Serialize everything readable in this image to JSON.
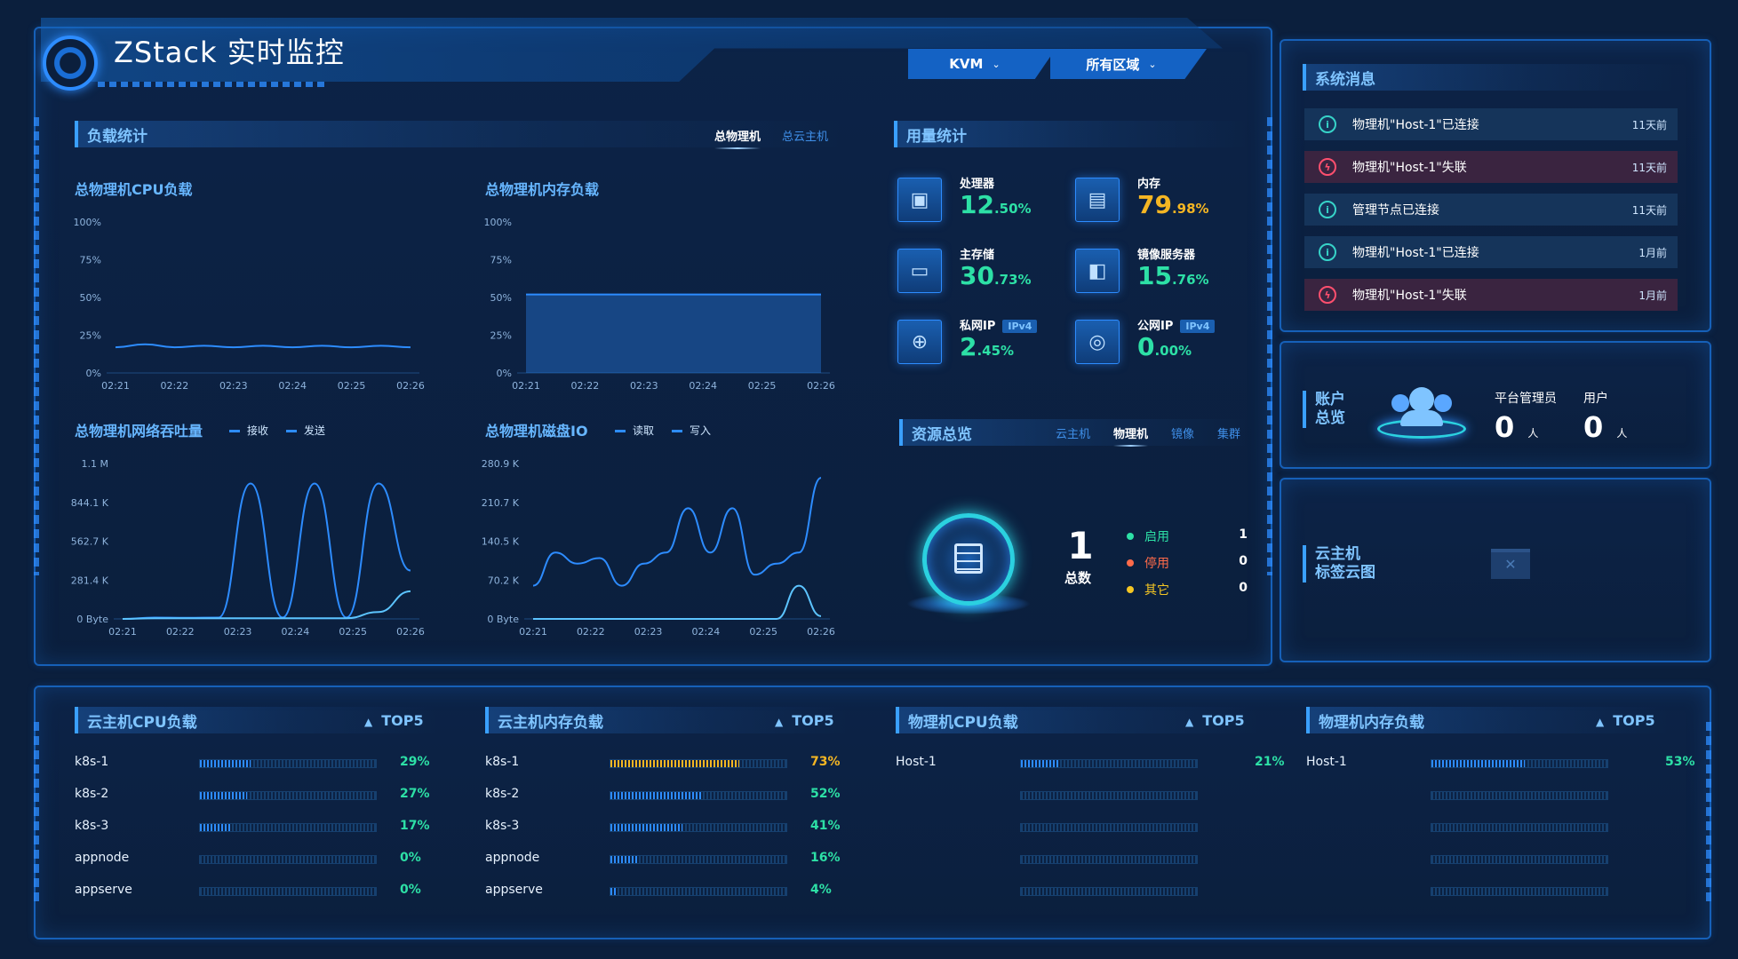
{
  "header": {
    "title": "ZStack 实时监控",
    "hypervisor_select": "KVM",
    "zone_select": "所有区域",
    "colors": {
      "accent": "#2d8cff",
      "background": "#0b1f3d"
    }
  },
  "load_stats": {
    "title": "负载统计",
    "tabs": [
      "总物理机",
      "总云主机"
    ],
    "active_tab": "总物理机"
  },
  "charts": {
    "cpu": {
      "title": "总物理机CPU负载",
      "ticks_y": [
        "100%",
        "75%",
        "50%",
        "25%",
        "0%"
      ],
      "ticks_x": [
        "02:21",
        "02:22",
        "02:23",
        "02:24",
        "02:25",
        "02:26"
      ]
    },
    "mem": {
      "title": "总物理机内存负载",
      "ticks_y": [
        "100%",
        "75%",
        "50%",
        "25%",
        "0%"
      ],
      "ticks_x": [
        "02:21",
        "02:22",
        "02:23",
        "02:24",
        "02:25",
        "02:26"
      ]
    },
    "net": {
      "title": "总物理机网络吞吐量",
      "legend": [
        "接收",
        "发送"
      ],
      "ticks_y": [
        "1.1 M",
        "844.1 K",
        "562.7 K",
        "281.4 K",
        "0 Byte"
      ],
      "ticks_x": [
        "02:21",
        "02:22",
        "02:23",
        "02:24",
        "02:25",
        "02:26"
      ]
    },
    "disk": {
      "title": "总物理机磁盘IO",
      "legend": [
        "读取",
        "写入"
      ],
      "ticks_y": [
        "280.9 K",
        "210.7 K",
        "140.5 K",
        "70.2 K",
        "0 Byte"
      ],
      "ticks_x": [
        "02:21",
        "02:22",
        "02:23",
        "02:24",
        "02:25",
        "02:26"
      ]
    }
  },
  "chart_data": [
    {
      "type": "line",
      "ylabel": "",
      "ylim": [
        0,
        100
      ],
      "x": [
        "02:21",
        "02:21:30",
        "02:22",
        "02:22:30",
        "02:23",
        "02:23:30",
        "02:24",
        "02:24:30",
        "02:25",
        "02:25:30",
        "02:26"
      ],
      "series": [
        {
          "values": [
            17,
            19,
            17,
            18,
            17,
            18,
            17,
            18,
            17,
            18,
            17
          ]
        }
      ]
    },
    {
      "type": "area",
      "ylabel": "",
      "ylim": [
        0,
        100
      ],
      "x": [
        "02:21",
        "02:22",
        "02:23",
        "02:24",
        "02:25",
        "02:26"
      ],
      "series": [
        {
          "values": [
            52,
            52,
            52,
            52,
            52,
            52
          ]
        }
      ]
    },
    {
      "type": "line",
      "ylim": [
        0,
        1125000
      ],
      "x": [
        "02:21",
        "02:22",
        "02:23",
        "02:24",
        "02:24:10",
        "02:24:20",
        "02:24:30",
        "02:25",
        "02:25:50",
        "02:26"
      ],
      "series": [
        {
          "name": "接收",
          "values": [
            0,
            10000,
            8000,
            10000,
            980000,
            10000,
            980000,
            10000,
            980000,
            350000
          ]
        },
        {
          "name": "发送",
          "values": [
            0,
            5000,
            5000,
            5000,
            5000,
            5000,
            5000,
            5000,
            50000,
            200000
          ]
        }
      ]
    },
    {
      "type": "line",
      "ylim": [
        0,
        280900
      ],
      "x": [
        "02:21",
        "02:21:20",
        "02:21:40",
        "02:22",
        "02:22:30",
        "02:23",
        "02:23:20",
        "02:23:40",
        "02:24",
        "02:24:20",
        "02:24:40",
        "02:25",
        "02:25:30",
        "02:26"
      ],
      "series": [
        {
          "name": "读取",
          "values": [
            60000,
            120000,
            100000,
            110000,
            60000,
            100000,
            120000,
            200000,
            120000,
            200000,
            80000,
            100000,
            120000,
            255000
          ]
        },
        {
          "name": "写入",
          "values": [
            0,
            0,
            0,
            0,
            0,
            0,
            0,
            0,
            0,
            0,
            0,
            0,
            60000,
            5000
          ]
        }
      ]
    }
  ],
  "usage": {
    "title": "用量统计",
    "items": [
      {
        "name": "处理器",
        "int": "12",
        "dec": ".50%",
        "color": "#2de0a6",
        "icon": "cpu-icon",
        "glyph": "▣"
      },
      {
        "name": "内存",
        "int": "79",
        "dec": ".98%",
        "color": "#f5b623",
        "icon": "memory-icon",
        "glyph": "▤"
      },
      {
        "name": "主存储",
        "int": "30",
        "dec": ".73%",
        "color": "#2de0a6",
        "icon": "storage-icon",
        "glyph": "▭"
      },
      {
        "name": "镜像服务器",
        "int": "15",
        "dec": ".76%",
        "color": "#2de0a6",
        "icon": "image-server-icon",
        "glyph": "◧"
      },
      {
        "name": "私网IP",
        "tag": "IPv4",
        "int": "2",
        "dec": ".45%",
        "color": "#2de0a6",
        "icon": "lock-icon",
        "glyph": "⊕"
      },
      {
        "name": "公网IP",
        "tag": "IPv4",
        "int": "0",
        "dec": ".00%",
        "color": "#2de0a6",
        "icon": "globe-icon",
        "glyph": "◎"
      }
    ]
  },
  "resource": {
    "title": "资源总览",
    "tabs": [
      "云主机",
      "物理机",
      "镜像",
      "集群"
    ],
    "active_tab": "物理机",
    "total": "1",
    "total_label": "总数",
    "states": [
      {
        "label": "启用",
        "count": "1",
        "color": "#2de0a6"
      },
      {
        "label": "停用",
        "count": "0",
        "color": "#ff6b4a"
      },
      {
        "label": "其它",
        "count": "0",
        "color": "#f5c623"
      }
    ]
  },
  "messages": {
    "title": "系统消息",
    "items": [
      {
        "type": "info",
        "text": "物理机\"Host-1\"已连接",
        "time": "11天前"
      },
      {
        "type": "error",
        "text": "物理机\"Host-1\"失联",
        "time": "11天前"
      },
      {
        "type": "info",
        "text": "管理节点已连接",
        "time": "11天前"
      },
      {
        "type": "info",
        "text": "物理机\"Host-1\"已连接",
        "time": "1月前"
      },
      {
        "type": "error",
        "text": "物理机\"Host-1\"失联",
        "time": "1月前"
      }
    ]
  },
  "account": {
    "title_line1": "账户",
    "title_line2": "总览",
    "admin_label": "平台管理员",
    "admin_count": "0",
    "user_label": "用户",
    "user_count": "0",
    "unit": "人"
  },
  "tag_cloud": {
    "title_line1": "云主机",
    "title_line2": "标签云图"
  },
  "top5": [
    {
      "title": "云主机CPU负载",
      "badge": "TOP5",
      "rows": [
        {
          "label": "k8s-1",
          "pct": "29%",
          "value": 29
        },
        {
          "label": "k8s-2",
          "pct": "27%",
          "value": 27
        },
        {
          "label": "k8s-3",
          "pct": "17%",
          "value": 17
        },
        {
          "label": "appnode",
          "pct": "0%",
          "value": 0
        },
        {
          "label": "appserve",
          "pct": "0%",
          "value": 0
        }
      ]
    },
    {
      "title": "云主机内存负载",
      "badge": "TOP5",
      "rows": [
        {
          "label": "k8s-1",
          "pct": "73%",
          "value": 73,
          "warn": true
        },
        {
          "label": "k8s-2",
          "pct": "52%",
          "value": 52
        },
        {
          "label": "k8s-3",
          "pct": "41%",
          "value": 41
        },
        {
          "label": "appnode",
          "pct": "16%",
          "value": 16
        },
        {
          "label": "appserve",
          "pct": "4%",
          "value": 4
        }
      ]
    },
    {
      "title": "物理机CPU负载",
      "badge": "TOP5",
      "rows": [
        {
          "label": "Host-1",
          "pct": "21%",
          "value": 21
        },
        {
          "label": "",
          "pct": "",
          "value": 0
        },
        {
          "label": "",
          "pct": "",
          "value": 0
        },
        {
          "label": "",
          "pct": "",
          "value": 0
        },
        {
          "label": "",
          "pct": "",
          "value": 0
        }
      ]
    },
    {
      "title": "物理机内存负载",
      "badge": "TOP5",
      "rows": [
        {
          "label": "Host-1",
          "pct": "53%",
          "value": 53
        },
        {
          "label": "",
          "pct": "",
          "value": 0
        },
        {
          "label": "",
          "pct": "",
          "value": 0
        },
        {
          "label": "",
          "pct": "",
          "value": 0
        },
        {
          "label": "",
          "pct": "",
          "value": 0
        }
      ]
    }
  ]
}
